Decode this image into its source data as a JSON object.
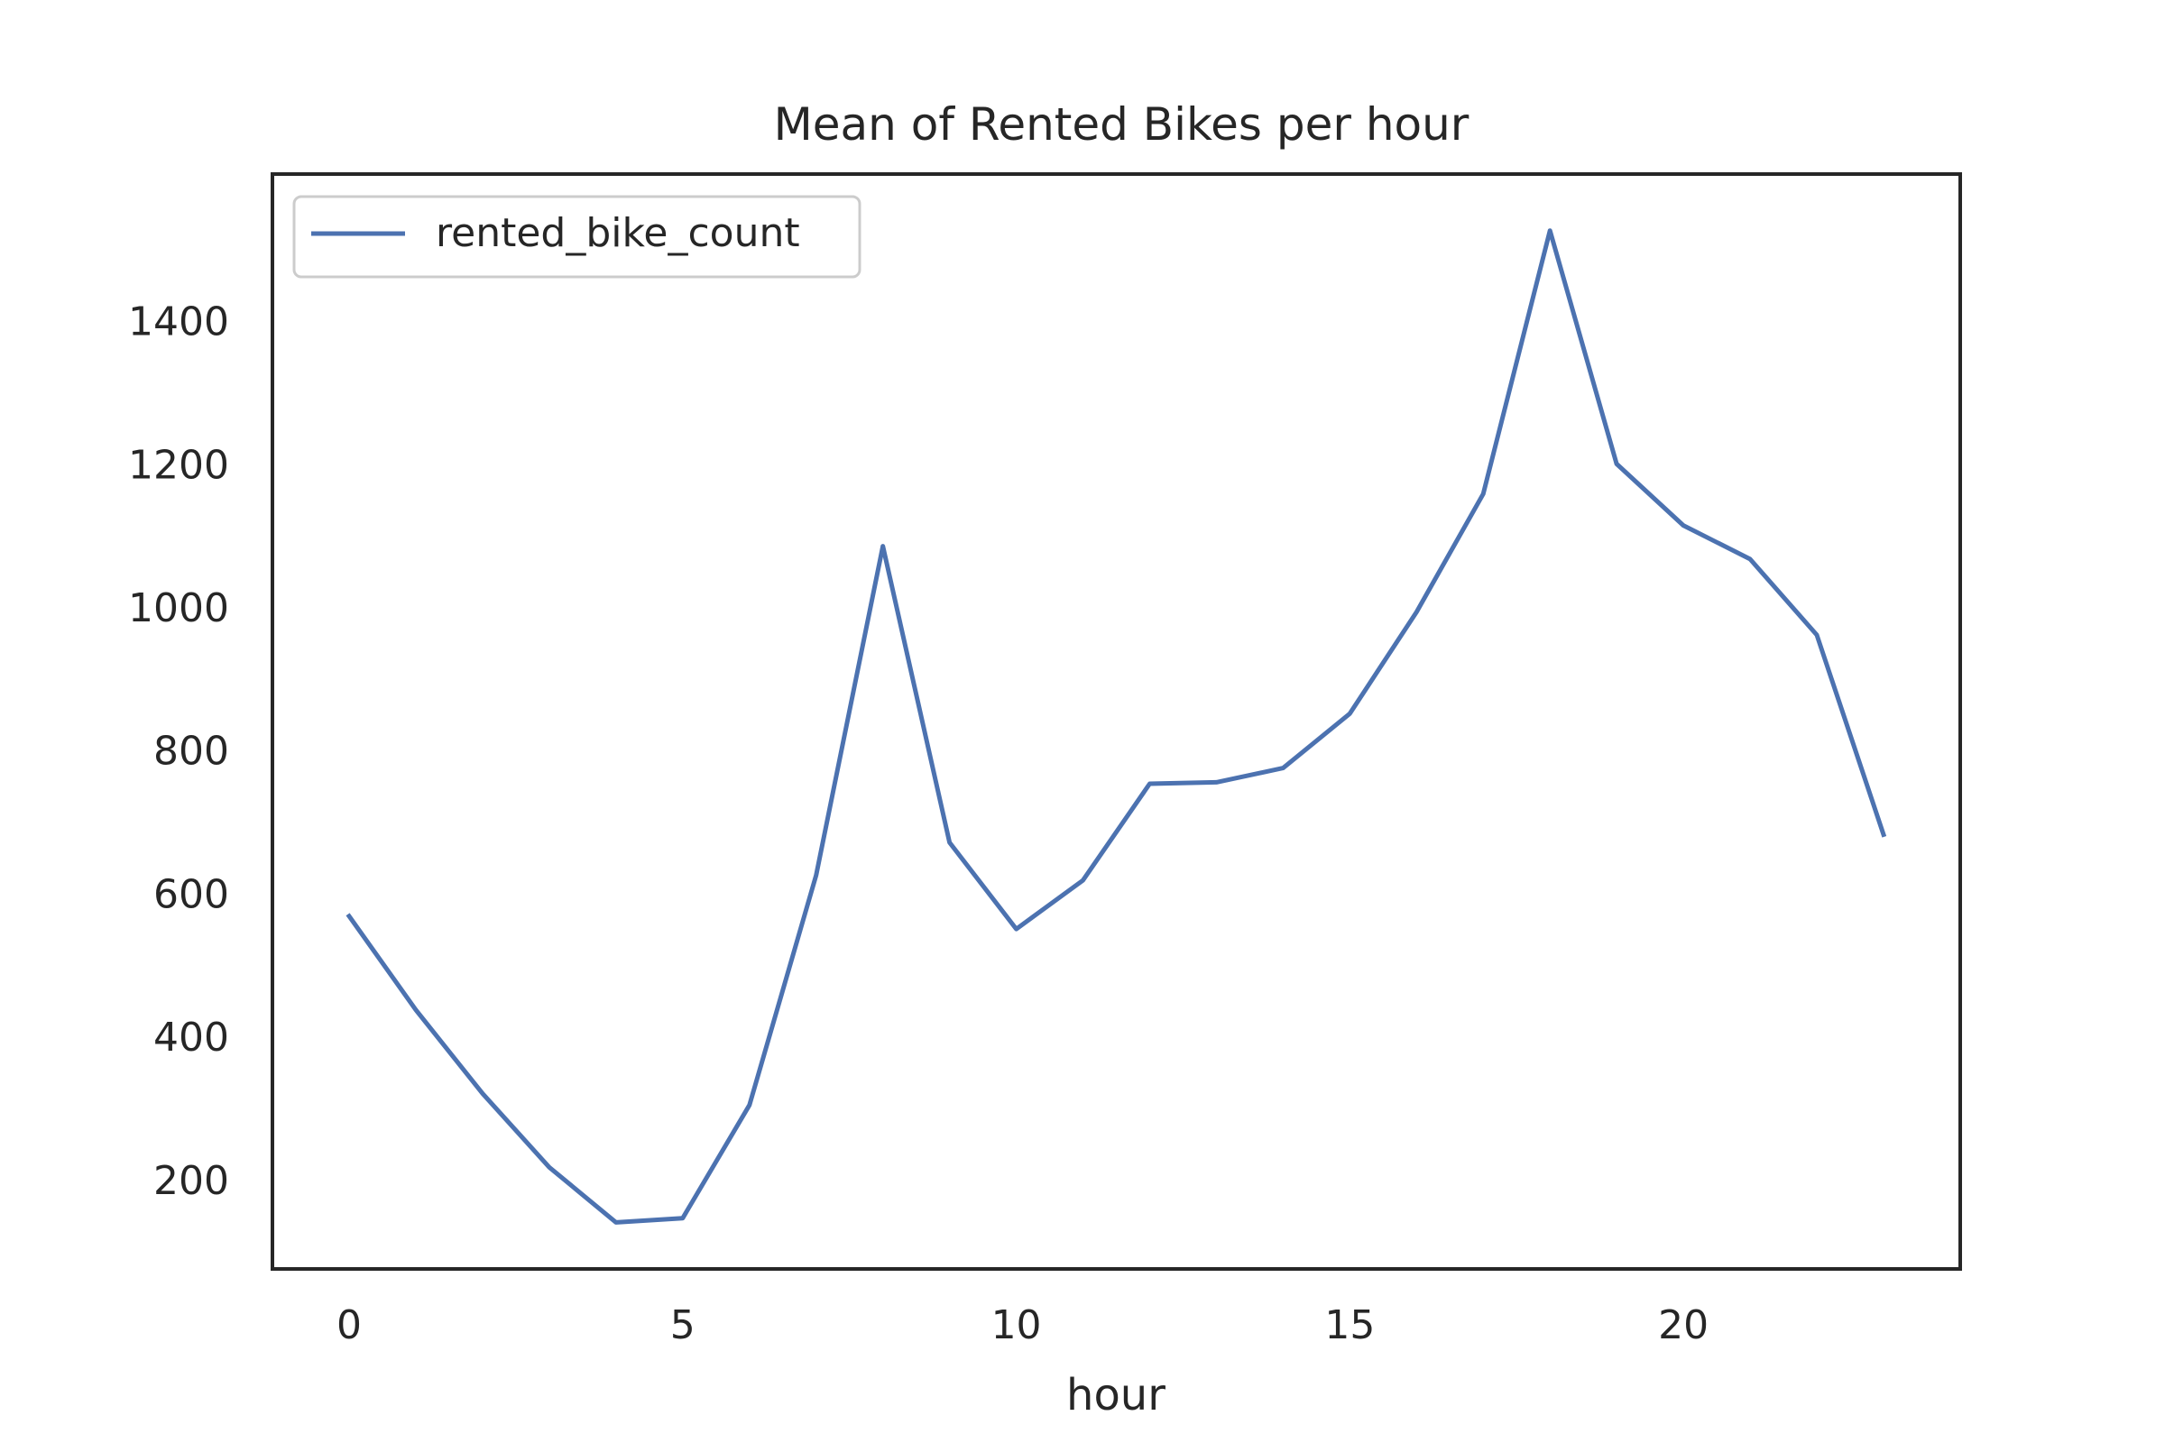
{
  "chart_data": {
    "type": "line",
    "title": "Mean of Rented Bikes per hour",
    "xlabel": "hour",
    "ylabel": "",
    "x": [
      0,
      1,
      2,
      3,
      4,
      5,
      6,
      7,
      8,
      9,
      10,
      11,
      12,
      13,
      14,
      15,
      16,
      17,
      18,
      19,
      20,
      21,
      22,
      23
    ],
    "series": [
      {
        "name": "rented_bike_count",
        "color": "#4c72b0",
        "values": [
          568,
          437,
          320,
          217,
          140,
          146,
          304,
          625,
          1085,
          671,
          550,
          618,
          753,
          755,
          775,
          851,
          993,
          1158,
          1526,
          1200,
          1114,
          1067,
          961,
          682
        ]
      }
    ],
    "xlim": [
      -1.15,
      24.15
    ],
    "ylim": [
      75,
      1605
    ],
    "xticks": [
      0,
      5,
      10,
      15,
      20
    ],
    "xtick_labels": [
      "0",
      "5",
      "10",
      "15",
      "20"
    ],
    "yticks": [
      200,
      400,
      600,
      800,
      1000,
      1200,
      1400
    ],
    "ytick_labels": [
      "200",
      "400",
      "600",
      "800",
      "1000",
      "1200",
      "1400"
    ],
    "grid": false,
    "legend_position": "top-left"
  }
}
